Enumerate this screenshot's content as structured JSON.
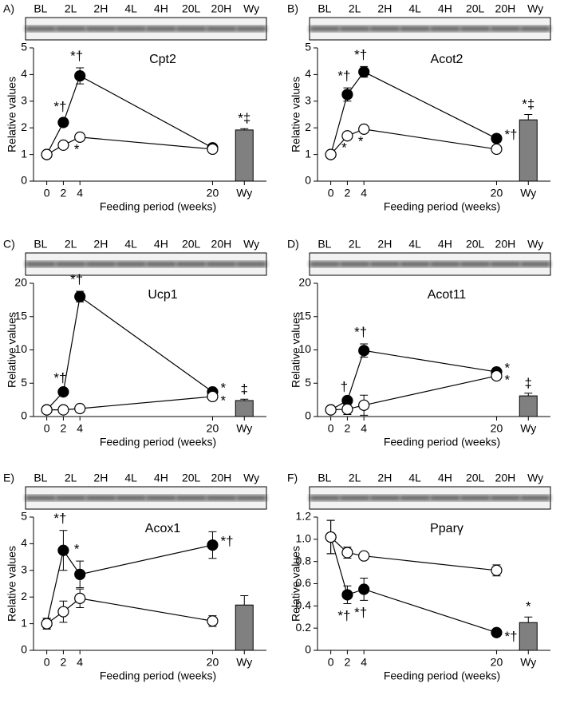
{
  "chart_data": [
    {
      "type": "line",
      "panel": "A)",
      "lanes": [
        "BL",
        "2L",
        "2H",
        "4L",
        "4H",
        "20L",
        "20H",
        "Wy"
      ],
      "title": "Cpt2",
      "ylabel": "Relative values",
      "xlabel": "Feeding period (weeks)",
      "x": [
        0,
        2,
        4,
        20
      ],
      "xlim": [
        -1.6,
        26.5
      ],
      "xticks": [
        0,
        2,
        4,
        20
      ],
      "ylim": [
        0,
        5
      ],
      "yticks": [
        0,
        1,
        2,
        3,
        4,
        5
      ],
      "series": [
        {
          "color": "#000000",
          "values": [
            1,
            2.2,
            3.95,
            1.25
          ],
          "errors": [
            0,
            0.15,
            0.3,
            0.05
          ],
          "annotations": [
            null,
            "*†",
            "*†",
            null
          ]
        },
        {
          "color": "#ffffff",
          "values": [
            1,
            1.35,
            1.65,
            1.2
          ],
          "errors": [
            0,
            0,
            0,
            0
          ],
          "annotations": [
            null,
            null,
            "*",
            null
          ]
        }
      ],
      "bar": {
        "category": "Wy",
        "color": "#808080",
        "value": 1.92,
        "error": 0.05,
        "annotation": "*‡"
      }
    },
    {
      "type": "line",
      "panel": "B)",
      "lanes": [
        "BL",
        "2L",
        "2H",
        "4L",
        "4H",
        "20L",
        "20H",
        "Wy"
      ],
      "title": "Acot2",
      "ylabel": "Relative values",
      "xlabel": "Feeding period (weeks)",
      "x": [
        0,
        2,
        4,
        20
      ],
      "xlim": [
        -1.6,
        26.5
      ],
      "xticks": [
        0,
        2,
        4,
        20
      ],
      "ylim": [
        0,
        5
      ],
      "yticks": [
        0,
        1,
        2,
        3,
        4,
        5
      ],
      "series": [
        {
          "color": "#000000",
          "values": [
            1,
            3.25,
            4.1,
            1.6
          ],
          "errors": [
            0,
            0.25,
            0.2,
            0.1
          ],
          "annotations": [
            null,
            "*†",
            "*†",
            "*†"
          ]
        },
        {
          "color": "#ffffff",
          "values": [
            1,
            1.7,
            1.95,
            1.2
          ],
          "errors": [
            0,
            0,
            0,
            0
          ],
          "annotations": [
            null,
            "*",
            "*",
            null
          ]
        }
      ],
      "bar": {
        "category": "Wy",
        "color": "#808080",
        "value": 2.3,
        "error": 0.2,
        "annotation": "*‡"
      }
    },
    {
      "type": "line",
      "panel": "C)",
      "lanes": [
        "BL",
        "2L",
        "2H",
        "4L",
        "4H",
        "20L",
        "20H",
        "Wy"
      ],
      "title": "Ucp1",
      "ylabel": "Relative values",
      "xlabel": "Feeding period (weeks)",
      "x": [
        0,
        2,
        4,
        20
      ],
      "xlim": [
        -1.6,
        26.5
      ],
      "xticks": [
        0,
        2,
        4,
        20
      ],
      "ylim": [
        0,
        20
      ],
      "yticks": [
        0,
        5,
        10,
        15,
        20
      ],
      "series": [
        {
          "color": "#000000",
          "values": [
            1,
            3.7,
            18,
            3.7
          ],
          "errors": [
            0,
            0.3,
            0.8,
            0.3
          ],
          "annotations": [
            null,
            "*†",
            "*†",
            "*"
          ]
        },
        {
          "color": "#ffffff",
          "values": [
            1,
            1,
            1.2,
            3
          ],
          "errors": [
            0,
            0,
            0,
            0
          ],
          "annotations": [
            null,
            null,
            null,
            "*"
          ]
        }
      ],
      "bar": {
        "category": "Wy",
        "color": "#808080",
        "value": 2.4,
        "error": 0.2,
        "annotation": "‡"
      }
    },
    {
      "type": "line",
      "panel": "D)",
      "lanes": [
        "BL",
        "2L",
        "2H",
        "4L",
        "4H",
        "20L",
        "20H",
        "Wy"
      ],
      "title": "Acot11",
      "ylabel": "Relative values",
      "xlabel": "Feeding period (weeks)",
      "x": [
        0,
        2,
        4,
        20
      ],
      "xlim": [
        -1.6,
        26.5
      ],
      "xticks": [
        0,
        2,
        4,
        20
      ],
      "ylim": [
        0,
        20
      ],
      "yticks": [
        0,
        5,
        10,
        15,
        20
      ],
      "series": [
        {
          "color": "#000000",
          "values": [
            1,
            2.4,
            9.9,
            6.7
          ],
          "errors": [
            0.2,
            0.3,
            1,
            0.5
          ],
          "annotations": [
            null,
            "†",
            "*†",
            "*"
          ]
        },
        {
          "color": "#ffffff",
          "values": [
            1,
            1.1,
            1.7,
            6.1
          ],
          "errors": [
            0.3,
            0.8,
            1.5,
            0.4
          ],
          "annotations": [
            null,
            null,
            null,
            "*"
          ]
        }
      ],
      "bar": {
        "category": "Wy",
        "color": "#808080",
        "value": 3.1,
        "error": 0.4,
        "annotation": "‡"
      }
    },
    {
      "type": "line",
      "panel": "E)",
      "lanes": [
        "BL",
        "2L",
        "2H",
        "4L",
        "4H",
        "20L",
        "20H",
        "Wy"
      ],
      "title": "Acox1",
      "ylabel": "Relative values",
      "xlabel": "Feeding period (weeks)",
      "x": [
        0,
        2,
        4,
        20
      ],
      "xlim": [
        -1.6,
        26.5
      ],
      "xticks": [
        0,
        2,
        4,
        20
      ],
      "ylim": [
        0,
        5
      ],
      "yticks": [
        0,
        1,
        2,
        3,
        4,
        5
      ],
      "series": [
        {
          "color": "#000000",
          "values": [
            1,
            3.75,
            2.85,
            3.95
          ],
          "errors": [
            0.2,
            0.75,
            0.5,
            0.5
          ],
          "annotations": [
            null,
            "*†",
            "*",
            "*†"
          ]
        },
        {
          "color": "#ffffff",
          "values": [
            1,
            1.45,
            1.95,
            1.1
          ],
          "errors": [
            0.2,
            0.4,
            0.35,
            0.2
          ]
        }
      ],
      "bar": {
        "category": "Wy",
        "color": "#808080",
        "value": 1.7,
        "error": 0.35
      }
    },
    {
      "type": "line",
      "panel": "F)",
      "lanes": [
        "BL",
        "2L",
        "2H",
        "4L",
        "4H",
        "20L",
        "20H",
        "Wy"
      ],
      "title": "Pparγ",
      "ylabel": "Relative values",
      "xlabel": "Feeding period (weeks)",
      "x": [
        0,
        2,
        4,
        20
      ],
      "xlim": [
        -1.6,
        26.5
      ],
      "xticks": [
        0,
        2,
        4,
        20
      ],
      "ylim": [
        0,
        1.2
      ],
      "yticks": [
        0,
        0.2,
        0.4,
        0.6,
        0.8,
        {
          "value": 1,
          "label": "1.0"
        },
        1.2
      ],
      "series": [
        {
          "color": "#000000",
          "values": [
            1.02,
            0.5,
            0.55,
            0.16
          ],
          "errors": [
            0.15,
            0.08,
            0.1,
            0.02
          ],
          "annotations": [
            null,
            "*†",
            "*†",
            "*†"
          ]
        },
        {
          "color": "#ffffff",
          "values": [
            1.02,
            0.88,
            0.85,
            0.72
          ],
          "errors": [
            0.15,
            0.05,
            0.03,
            0.05
          ]
        }
      ],
      "bar": {
        "category": "Wy",
        "color": "#808080",
        "value": 0.25,
        "error": 0.05,
        "annotation": "*"
      }
    }
  ]
}
